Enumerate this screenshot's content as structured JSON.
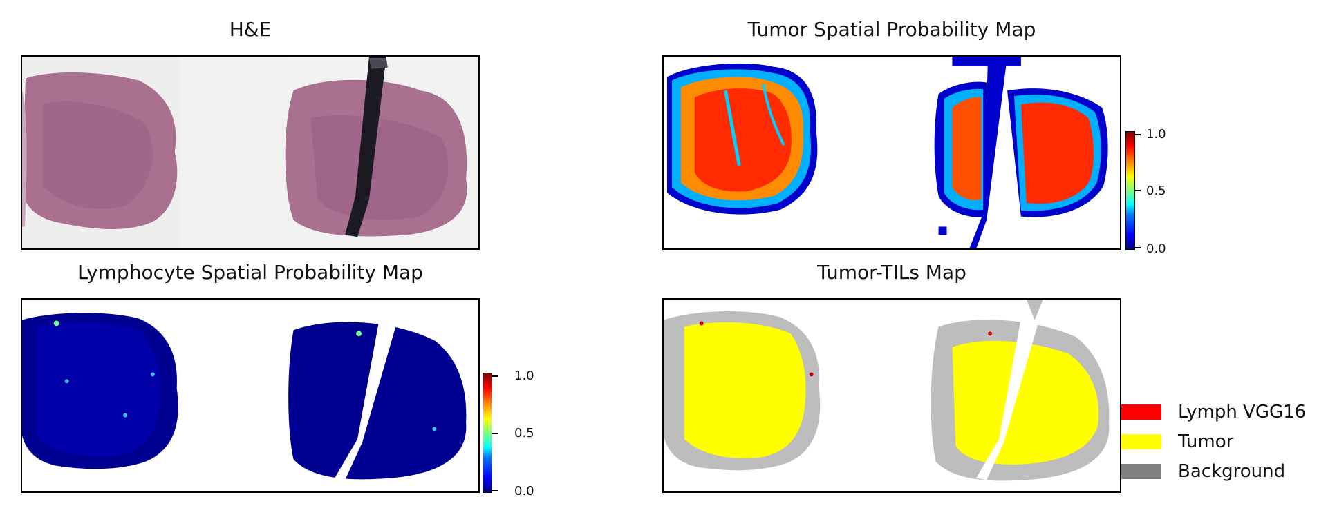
{
  "panels": {
    "he": {
      "title": "H&E"
    },
    "tumor_map": {
      "title": "Tumor Spatial Probability Map"
    },
    "lymph_map": {
      "title": "Lymphocyte Spatial Probability Map"
    },
    "tils_map": {
      "title": "Tumor-TILs Map"
    }
  },
  "colorbar": {
    "colormap": "jet",
    "ticks": [
      "1.0",
      "0.5",
      "0.0"
    ]
  },
  "legend": {
    "items": [
      {
        "label": "Lymph VGG16",
        "color": "#ff0000"
      },
      {
        "label": "Tumor",
        "color": "#ffff00"
      },
      {
        "label": "Background",
        "color": "#808080"
      }
    ]
  }
}
